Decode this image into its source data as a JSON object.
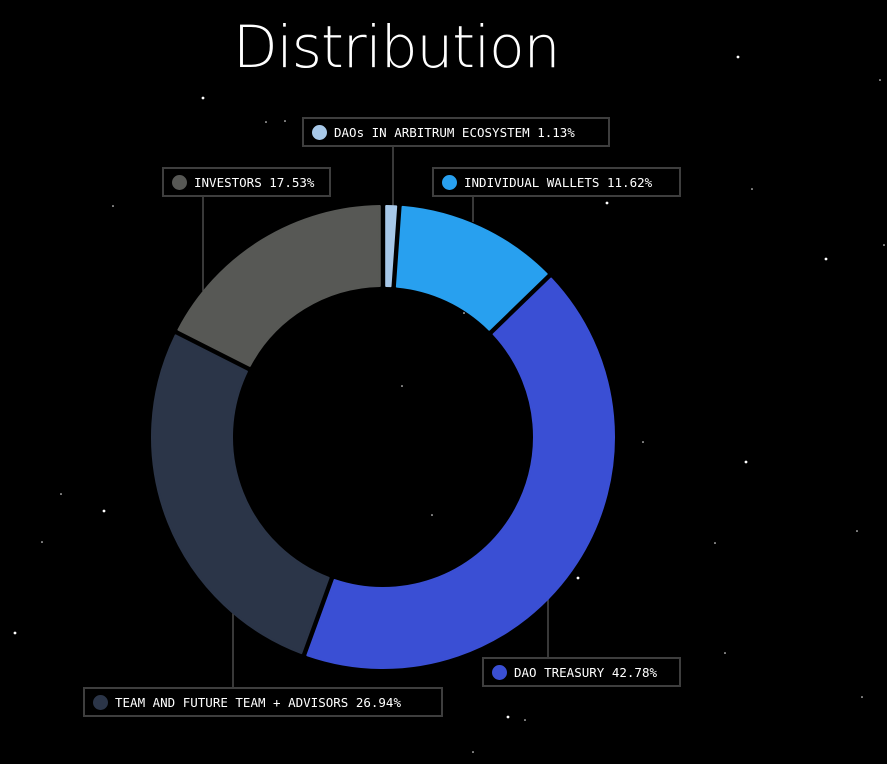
{
  "title": "Distribution",
  "chart_data": {
    "type": "pie",
    "variant": "donut",
    "title": "Distribution",
    "slices": [
      {
        "label": "DAOs IN ARBITRUM ECOSYSTEM",
        "value": 1.13,
        "value_label": "1.13%",
        "color": "#a7c8e8"
      },
      {
        "label": "INDIVIDUAL WALLETS",
        "value": 11.62,
        "value_label": "11.62%",
        "color": "#28a0ef"
      },
      {
        "label": "DAO TREASURY",
        "value": 42.78,
        "value_label": "42.78%",
        "color": "#3a4fd4"
      },
      {
        "label": "TEAM AND FUTURE TEAM + ADVISORS",
        "value": 26.94,
        "value_label": "26.94%",
        "color": "#2b3548"
      },
      {
        "label": "INVESTORS",
        "value": 17.53,
        "value_label": "17.53%",
        "color": "#575855"
      }
    ]
  }
}
